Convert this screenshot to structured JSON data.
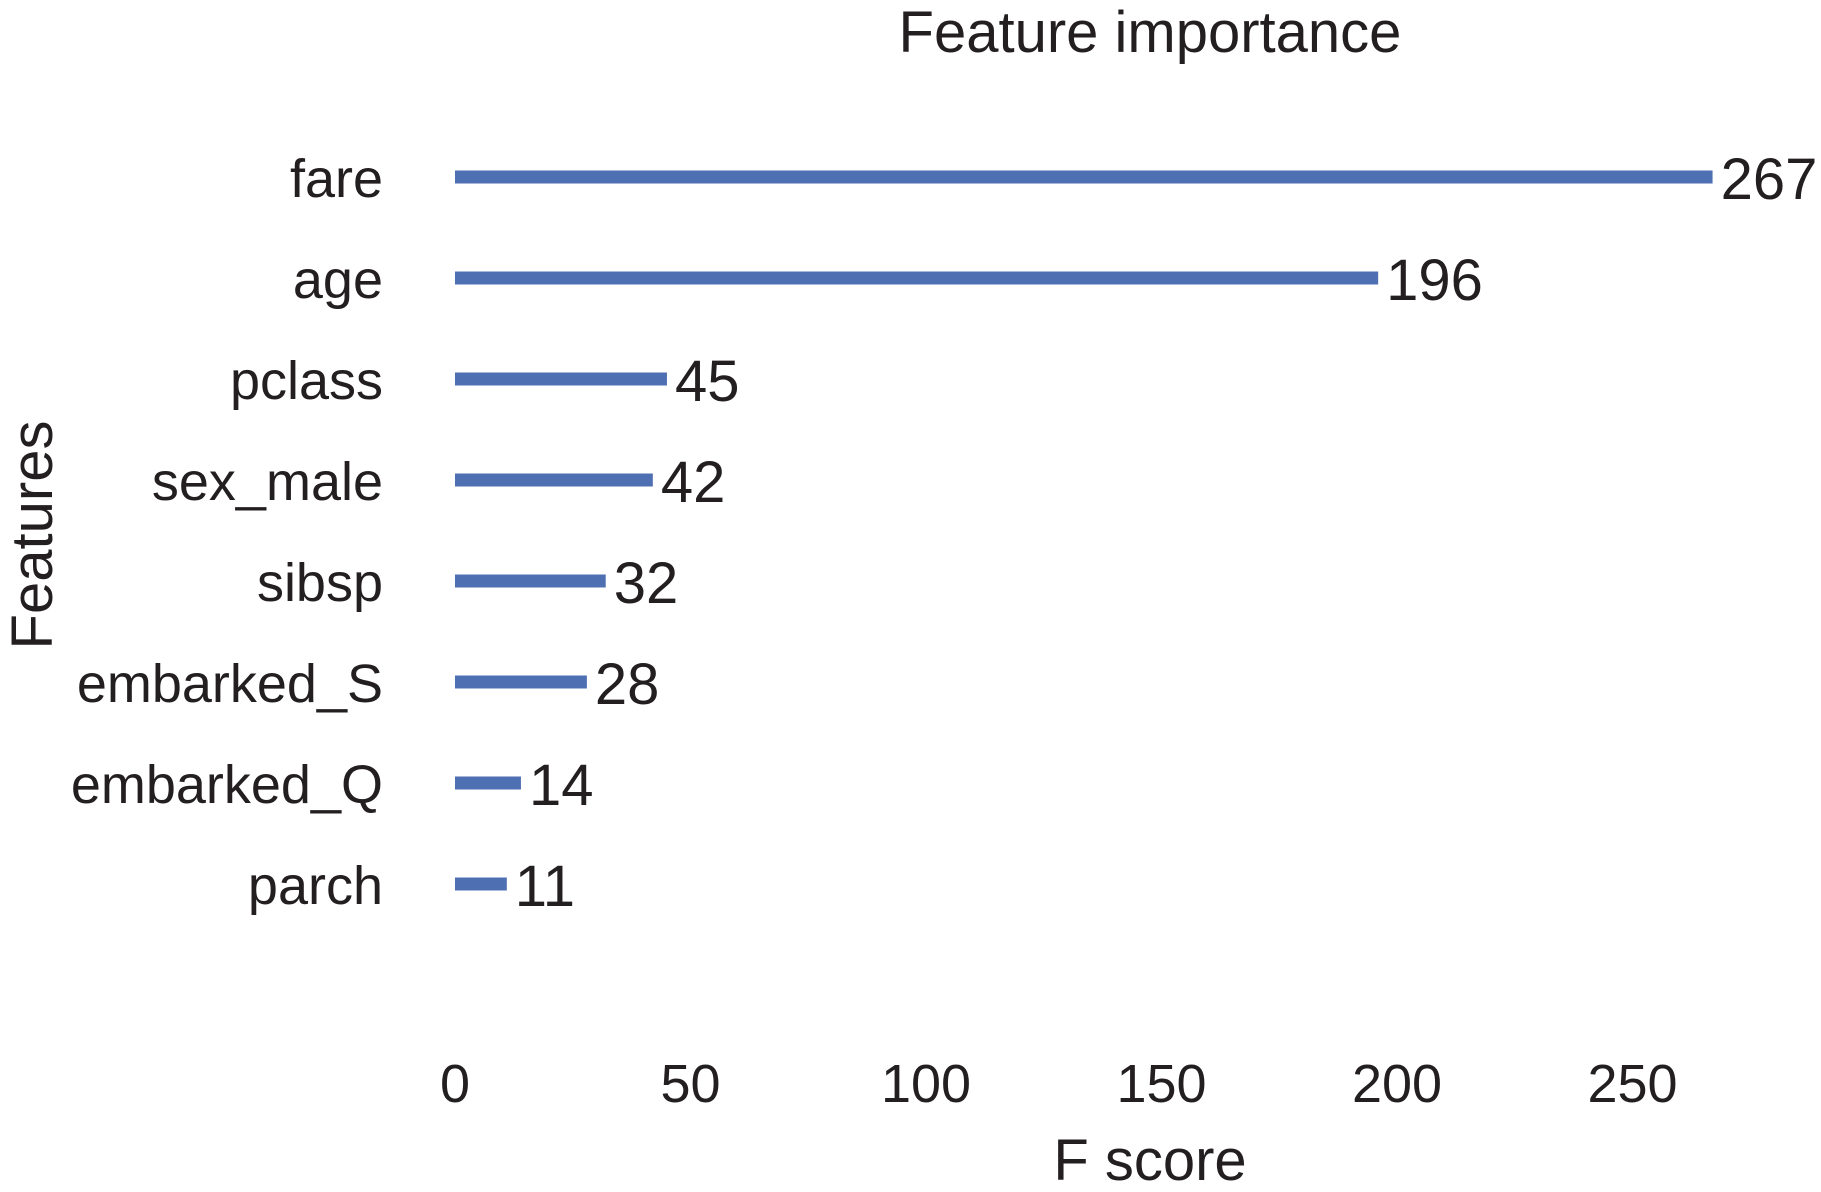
{
  "chart_data": {
    "type": "bar",
    "orientation": "horizontal",
    "title": "Feature importance",
    "xlabel": "F score",
    "ylabel": "Features",
    "categories": [
      "fare",
      "age",
      "pclass",
      "sex_male",
      "sibsp",
      "embarked_S",
      "embarked_Q",
      "parch"
    ],
    "values": [
      267,
      196,
      45,
      42,
      32,
      28,
      14,
      11
    ],
    "data_labels": [
      "267",
      "196",
      "45",
      "42",
      "32",
      "28",
      "14",
      "11"
    ],
    "xticks": [
      0,
      50,
      100,
      150,
      200,
      250
    ],
    "xtick_labels": [
      "0",
      "50",
      "100",
      "150",
      "200",
      "250"
    ],
    "xlim": [
      0,
      280
    ],
    "grid": false,
    "bar_color": "#4f6fb3",
    "text_color": "#231f20"
  }
}
